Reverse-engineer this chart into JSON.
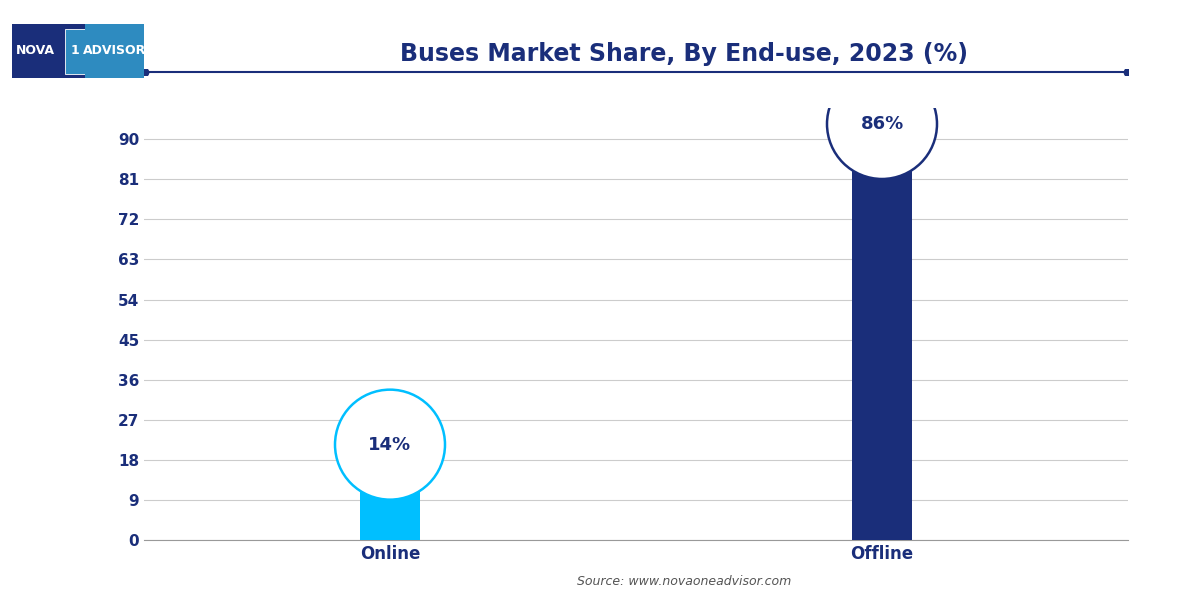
{
  "title": "Buses Market Share, By End-use, 2023 (%)",
  "categories": [
    "Online",
    "Offline"
  ],
  "values": [
    14,
    86
  ],
  "bar_colors": [
    "#00BFFF",
    "#1A2E7A"
  ],
  "ellipse_edge_colors": [
    "#00BFFF",
    "#1A2E7A"
  ],
  "label_color": "#1A2E7A",
  "yticks": [
    0,
    9,
    18,
    27,
    36,
    45,
    54,
    63,
    72,
    81,
    90
  ],
  "ylim": [
    0,
    97
  ],
  "source_text": "Source: www.novaoneadvisor.com",
  "background_color": "#FFFFFF",
  "grid_color": "#CCCCCC",
  "title_color": "#1A2E7A",
  "tick_color": "#1A2E7A",
  "bar_width": 0.12,
  "x_positions": [
    1.0,
    2.0
  ],
  "xlim": [
    0.5,
    2.5
  ],
  "logo_bg": "#1A2E7A",
  "logo_highlight": "#2E8BC0"
}
